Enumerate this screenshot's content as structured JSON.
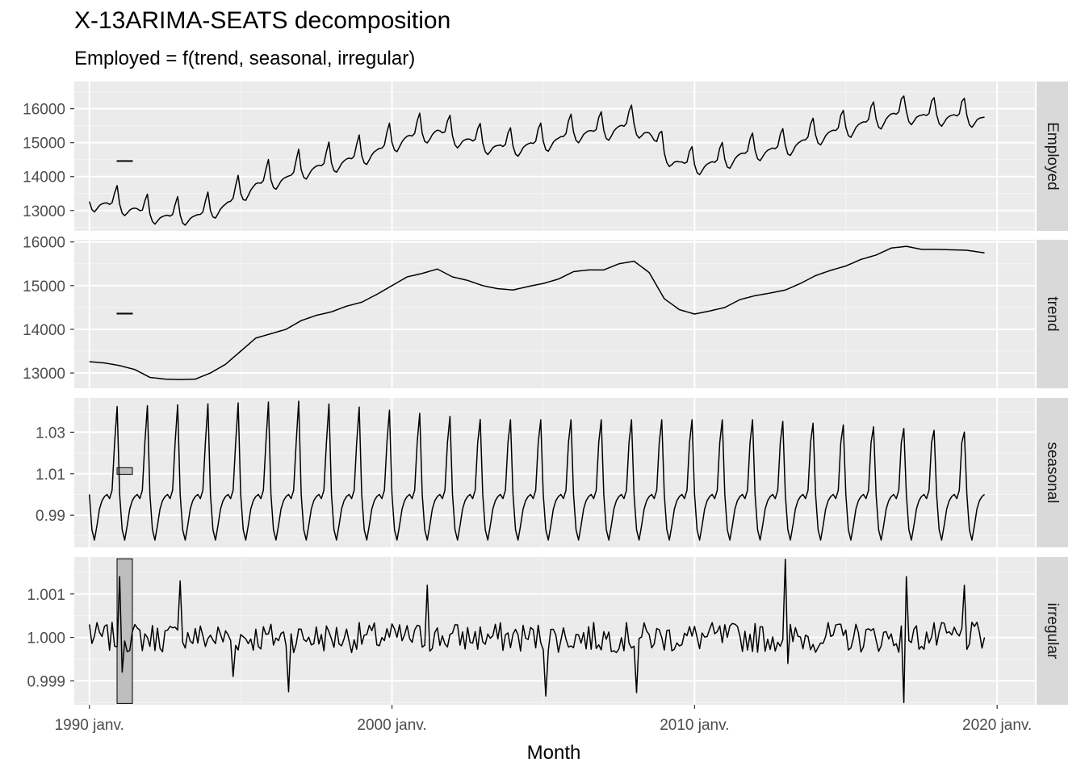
{
  "chart_data": {
    "type": "line",
    "title": "X-13ARIMA-SEATS decomposition",
    "subtitle": "Employed = f(trend, seasonal, irregular)",
    "xlabel": "Month",
    "x_range": [
      "1989-07",
      "2021-04"
    ],
    "x_ticks": [
      {
        "date": "1990-01",
        "label": "1990 janv."
      },
      {
        "date": "2000-01",
        "label": "2000 janv."
      },
      {
        "date": "2010-01",
        "label": "2010 janv."
      },
      {
        "date": "2020-01",
        "label": "2020 janv."
      }
    ],
    "grid": true,
    "facets": [
      {
        "name": "Employed",
        "ylim": [
          12400,
          16800
        ],
        "y_ticks": [
          {
            "value": 13000,
            "label": "13000"
          },
          {
            "value": 14000,
            "label": "14000"
          },
          {
            "value": 15000,
            "label": "15000"
          },
          {
            "value": 16000,
            "label": "16000"
          }
        ],
        "scale_bar": [
          14450,
          14470
        ],
        "series": [
          {
            "date": "1990-01",
            "value": 13250
          },
          {
            "date": "1990-07",
            "value": 13100
          },
          {
            "date": "1991-01",
            "value": 12900
          },
          {
            "date": "1991-07",
            "value": 12800
          },
          {
            "date": "1992-01",
            "value": 12700
          },
          {
            "date": "1992-07",
            "value": 12680
          },
          {
            "date": "1993-01",
            "value": 12720
          },
          {
            "date": "1993-07",
            "value": 12850
          },
          {
            "date": "1994-01",
            "value": 13000
          },
          {
            "date": "1994-07",
            "value": 13300
          },
          {
            "date": "1995-01",
            "value": 13650
          },
          {
            "date": "1995-07",
            "value": 13800
          },
          {
            "date": "1996-01",
            "value": 13900
          },
          {
            "date": "1996-07",
            "value": 14050
          },
          {
            "date": "1997-01",
            "value": 14250
          },
          {
            "date": "1997-07",
            "value": 14350
          },
          {
            "date": "1998-01",
            "value": 14450
          },
          {
            "date": "1998-07",
            "value": 14550
          },
          {
            "date": "1999-01",
            "value": 14650
          },
          {
            "date": "1999-07",
            "value": 14850
          },
          {
            "date": "2000-01",
            "value": 15050
          },
          {
            "date": "2000-07",
            "value": 15200
          },
          {
            "date": "2001-01",
            "value": 15280
          },
          {
            "date": "2001-07",
            "value": 15350
          },
          {
            "date": "2002-01",
            "value": 15200
          },
          {
            "date": "2002-07",
            "value": 15100
          },
          {
            "date": "2003-01",
            "value": 15000
          },
          {
            "date": "2003-07",
            "value": 14900
          },
          {
            "date": "2004-01",
            "value": 14900
          },
          {
            "date": "2004-07",
            "value": 14980
          },
          {
            "date": "2005-01",
            "value": 15050
          },
          {
            "date": "2005-07",
            "value": 15150
          },
          {
            "date": "2006-01",
            "value": 15300
          },
          {
            "date": "2006-07",
            "value": 15350
          },
          {
            "date": "2007-01",
            "value": 15350
          },
          {
            "date": "2007-07",
            "value": 15500
          },
          {
            "date": "2008-01",
            "value": 15550
          },
          {
            "date": "2008-07",
            "value": 15300
          },
          {
            "date": "2009-01",
            "value": 14700
          },
          {
            "date": "2009-07",
            "value": 14450
          },
          {
            "date": "2010-01",
            "value": 14350
          },
          {
            "date": "2010-07",
            "value": 14400
          },
          {
            "date": "2011-01",
            "value": 14500
          },
          {
            "date": "2011-07",
            "value": 14650
          },
          {
            "date": "2012-01",
            "value": 14750
          },
          {
            "date": "2012-07",
            "value": 14850
          },
          {
            "date": "2013-01",
            "value": 14900
          },
          {
            "date": "2013-07",
            "value": 15050
          },
          {
            "date": "2014-01",
            "value": 15200
          },
          {
            "date": "2014-07",
            "value": 15350
          },
          {
            "date": "2015-01",
            "value": 15450
          },
          {
            "date": "2015-07",
            "value": 15600
          },
          {
            "date": "2016-01",
            "value": 15700
          },
          {
            "date": "2016-07",
            "value": 15850
          },
          {
            "date": "2017-01",
            "value": 15900
          },
          {
            "date": "2017-07",
            "value": 15850
          },
          {
            "date": "2018-01",
            "value": 15850
          },
          {
            "date": "2018-07",
            "value": 15830
          },
          {
            "date": "2019-01",
            "value": 15800
          },
          {
            "date": "2019-08",
            "value": 15650
          }
        ]
      },
      {
        "name": "trend",
        "ylim": [
          12650,
          16050
        ],
        "y_ticks": [
          {
            "value": 13000,
            "label": "13000"
          },
          {
            "value": 14000,
            "label": "14000"
          },
          {
            "value": 15000,
            "label": "15000"
          },
          {
            "value": 16000,
            "label": "16000"
          }
        ],
        "scale_bar": [
          14350,
          14370
        ],
        "series": [
          {
            "date": "1990-01",
            "value": 13260
          },
          {
            "date": "1990-07",
            "value": 13230
          },
          {
            "date": "1991-01",
            "value": 13170
          },
          {
            "date": "1991-07",
            "value": 13080
          },
          {
            "date": "1992-01",
            "value": 12900
          },
          {
            "date": "1992-07",
            "value": 12860
          },
          {
            "date": "1993-01",
            "value": 12850
          },
          {
            "date": "1993-07",
            "value": 12860
          },
          {
            "date": "1994-01",
            "value": 13000
          },
          {
            "date": "1994-07",
            "value": 13200
          },
          {
            "date": "1995-01",
            "value": 13500
          },
          {
            "date": "1995-07",
            "value": 13800
          },
          {
            "date": "1996-01",
            "value": 13900
          },
          {
            "date": "1996-07",
            "value": 14000
          },
          {
            "date": "1997-01",
            "value": 14200
          },
          {
            "date": "1997-07",
            "value": 14320
          },
          {
            "date": "1998-01",
            "value": 14400
          },
          {
            "date": "1998-07",
            "value": 14530
          },
          {
            "date": "1999-01",
            "value": 14620
          },
          {
            "date": "1999-07",
            "value": 14800
          },
          {
            "date": "2000-01",
            "value": 15000
          },
          {
            "date": "2000-07",
            "value": 15200
          },
          {
            "date": "2001-01",
            "value": 15280
          },
          {
            "date": "2001-07",
            "value": 15380
          },
          {
            "date": "2002-01",
            "value": 15200
          },
          {
            "date": "2002-07",
            "value": 15120
          },
          {
            "date": "2003-01",
            "value": 15000
          },
          {
            "date": "2003-07",
            "value": 14930
          },
          {
            "date": "2004-01",
            "value": 14900
          },
          {
            "date": "2004-07",
            "value": 14980
          },
          {
            "date": "2005-01",
            "value": 15050
          },
          {
            "date": "2005-07",
            "value": 15150
          },
          {
            "date": "2006-01",
            "value": 15320
          },
          {
            "date": "2006-07",
            "value": 15360
          },
          {
            "date": "2007-01",
            "value": 15360
          },
          {
            "date": "2007-07",
            "value": 15500
          },
          {
            "date": "2008-01",
            "value": 15560
          },
          {
            "date": "2008-07",
            "value": 15300
          },
          {
            "date": "2009-01",
            "value": 14700
          },
          {
            "date": "2009-07",
            "value": 14450
          },
          {
            "date": "2010-01",
            "value": 14350
          },
          {
            "date": "2010-07",
            "value": 14420
          },
          {
            "date": "2011-01",
            "value": 14500
          },
          {
            "date": "2011-07",
            "value": 14680
          },
          {
            "date": "2012-01",
            "value": 14770
          },
          {
            "date": "2012-07",
            "value": 14830
          },
          {
            "date": "2013-01",
            "value": 14900
          },
          {
            "date": "2013-07",
            "value": 15050
          },
          {
            "date": "2014-01",
            "value": 15230
          },
          {
            "date": "2014-07",
            "value": 15350
          },
          {
            "date": "2015-01",
            "value": 15450
          },
          {
            "date": "2015-07",
            "value": 15600
          },
          {
            "date": "2016-01",
            "value": 15700
          },
          {
            "date": "2016-07",
            "value": 15860
          },
          {
            "date": "2017-01",
            "value": 15900
          },
          {
            "date": "2017-07",
            "value": 15830
          },
          {
            "date": "2018-01",
            "value": 15830
          },
          {
            "date": "2018-07",
            "value": 15820
          },
          {
            "date": "2019-01",
            "value": 15810
          },
          {
            "date": "2019-08",
            "value": 15750
          }
        ]
      },
      {
        "name": "seasonal",
        "ylim": [
          0.9745,
          1.0465
        ],
        "y_ticks": [
          {
            "value": 0.99,
            "label": "0.99"
          },
          {
            "value": 1.01,
            "label": "1.01"
          },
          {
            "value": 1.03,
            "label": "1.03"
          }
        ],
        "scale_bar": [
          1.0097,
          1.0129
        ],
        "pattern": [
          1.0,
          0.983,
          0.978,
          0.985,
          0.993,
          0.997,
          0.999,
          1.0,
          0.998,
          1.002,
          1.025,
          1.04
        ],
        "peak_trend": [
          [
            1990,
            1.042
          ],
          [
            1997,
            1.045
          ],
          [
            2003,
            1.036
          ],
          [
            2012,
            1.036
          ],
          [
            2019,
            1.03
          ]
        ],
        "series": [
          {
            "date": "1990-01",
            "value": 0.999
          },
          {
            "date": "1990-03",
            "value": 0.977
          },
          {
            "date": "1990-12",
            "value": 1.042
          },
          {
            "date": "1997-12",
            "value": 1.045
          },
          {
            "date": "2003-12",
            "value": 1.036
          },
          {
            "date": "2012-12",
            "value": 1.036
          },
          {
            "date": "2018-12",
            "value": 1.031
          },
          {
            "date": "2019-08",
            "value": 0.991
          }
        ]
      },
      {
        "name": "irregular",
        "ylim": [
          0.99845,
          1.00185
        ],
        "y_ticks": [
          {
            "value": 0.999,
            "label": "0.999"
          },
          {
            "value": 1.0,
            "label": "1.000"
          },
          {
            "value": 1.001,
            "label": "1.001"
          }
        ],
        "scale_bar": [
          0.99848,
          1.00181
        ],
        "spikes": [
          {
            "date": "1990-01",
            "value": 1.0003
          },
          {
            "date": "1991-01",
            "value": 1.0014
          },
          {
            "date": "1991-02",
            "value": 0.9992
          },
          {
            "date": "1993-01",
            "value": 1.0013
          },
          {
            "date": "1994-10",
            "value": 0.9991
          },
          {
            "date": "1996-08",
            "value": 0.99875
          },
          {
            "date": "2001-03",
            "value": 1.0012
          },
          {
            "date": "2005-02",
            "value": 0.99865
          },
          {
            "date": "2008-02",
            "value": 0.99873
          },
          {
            "date": "2013-01",
            "value": 1.0018
          },
          {
            "date": "2013-02",
            "value": 0.9994
          },
          {
            "date": "2016-12",
            "value": 0.9985
          },
          {
            "date": "2017-01",
            "value": 1.0014
          },
          {
            "date": "2018-12",
            "value": 1.0012
          },
          {
            "date": "2019-08",
            "value": 1.0
          }
        ]
      }
    ]
  }
}
